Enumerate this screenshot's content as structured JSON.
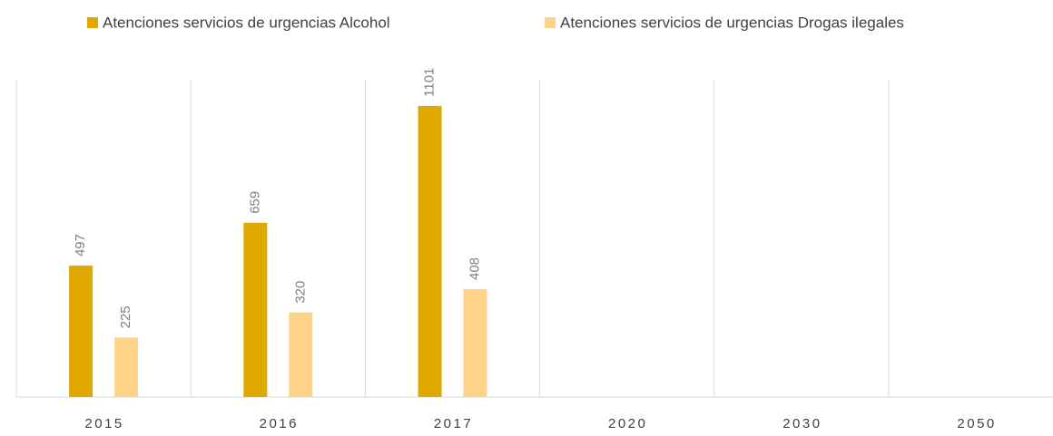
{
  "chart_data": {
    "type": "bar",
    "categories": [
      "2015",
      "2016",
      "2017",
      "2020",
      "2030",
      "2050"
    ],
    "series": [
      {
        "name": "Atenciones servicios de urgencias Alcohol",
        "color": "#dfa900",
        "values": [
          497,
          659,
          1101,
          null,
          null,
          null
        ]
      },
      {
        "name": "Atenciones servicios de urgencias Drogas ilegales",
        "color": "#ffd38a",
        "values": [
          225,
          320,
          408,
          null,
          null,
          null
        ]
      }
    ],
    "ylim": [
      0,
      1200
    ],
    "legend": "top"
  }
}
